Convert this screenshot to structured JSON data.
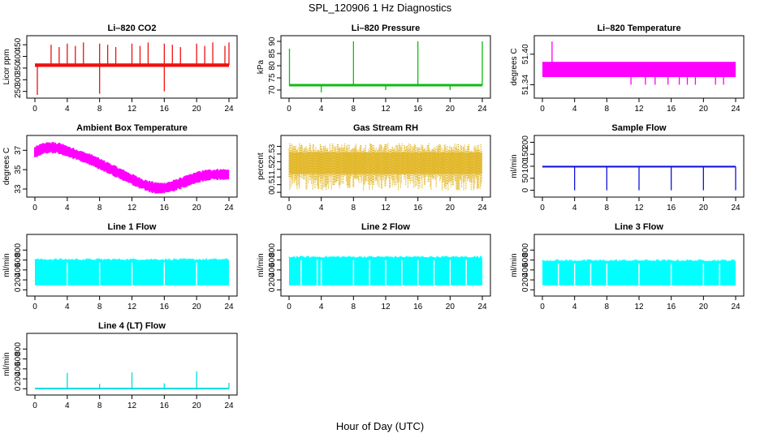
{
  "title": "SPL_120906  1 Hz Diagnostics",
  "xlabel": "Hour of Day (UTC)",
  "chart_data": [
    {
      "id": "co2",
      "type": "line",
      "title": "Li–820 CO2",
      "ylabel": "Licor ppm",
      "color": "#ee1111",
      "xlim": [
        0,
        24
      ],
      "xticks": [
        0,
        4,
        8,
        12,
        16,
        20,
        24
      ],
      "ylim": [
        235,
        475
      ],
      "yticks": [
        250,
        300,
        350,
        400,
        450
      ],
      "series": [
        {
          "band": [
            355,
            370
          ],
          "spikes": [
            [
              0.3,
              235
            ],
            [
              2,
              450
            ],
            [
              3,
              440
            ],
            [
              4,
              455
            ],
            [
              5,
              445
            ],
            [
              6,
              460
            ],
            [
              8,
              240
            ],
            [
              8,
              455
            ],
            [
              9,
              450
            ],
            [
              10,
              440
            ],
            [
              12,
              455
            ],
            [
              13,
              445
            ],
            [
              14,
              460
            ],
            [
              16,
              250
            ],
            [
              16,
              455
            ],
            [
              17,
              450
            ],
            [
              18,
              440
            ],
            [
              20,
              455
            ],
            [
              21,
              445
            ],
            [
              22,
              460
            ],
            [
              23.5,
              445
            ],
            [
              24,
              460
            ]
          ]
        }
      ]
    },
    {
      "id": "pressure",
      "type": "line",
      "title": "Li–820 Pressure",
      "ylabel": "kPa",
      "color": "#11bb11",
      "xlim": [
        0,
        24
      ],
      "xticks": [
        0,
        4,
        8,
        12,
        16,
        20,
        24
      ],
      "ylim": [
        68,
        91
      ],
      "yticks": [
        70,
        75,
        80,
        85,
        90
      ],
      "series": [
        {
          "band": [
            71.5,
            72.5
          ],
          "spikes": [
            [
              0.05,
              87
            ],
            [
              4,
              69
            ],
            [
              8,
              90
            ],
            [
              12,
              70
            ],
            [
              16,
              90
            ],
            [
              20,
              70
            ],
            [
              24,
              90
            ]
          ]
        }
      ]
    },
    {
      "id": "licor_temp",
      "type": "line",
      "title": "Li–820 Temperature",
      "ylabel": "degrees C",
      "color": "#ff00ff",
      "xlim": [
        0,
        24
      ],
      "xticks": [
        0,
        4,
        8,
        12,
        16,
        20,
        24
      ],
      "ylim": [
        51.32,
        51.43
      ],
      "yticks": [
        51.34,
        51.4
      ],
      "series": [
        {
          "band": [
            51.355,
            51.385
          ],
          "spikes": [
            [
              1.2,
              51.425
            ],
            [
              11,
              51.34
            ],
            [
              12.8,
              51.34
            ],
            [
              14,
              51.34
            ],
            [
              15.6,
              51.34
            ],
            [
              17,
              51.34
            ],
            [
              18,
              51.34
            ],
            [
              19,
              51.34
            ],
            [
              21.5,
              51.34
            ],
            [
              22.5,
              51.34
            ]
          ]
        }
      ]
    },
    {
      "id": "ambient_temp",
      "type": "line",
      "title": "Ambient Box Temperature",
      "ylabel": "degrees C",
      "color": "#ff00ff",
      "xlim": [
        0,
        24
      ],
      "xticks": [
        0,
        4,
        8,
        12,
        16,
        20,
        24
      ],
      "ylim": [
        32.5,
        38.2
      ],
      "yticks": [
        33,
        35,
        37
      ],
      "series": [
        {
          "x": [
            0,
            1,
            2,
            3,
            4,
            5,
            6,
            7,
            8,
            9,
            10,
            11,
            12,
            13,
            14,
            15,
            16,
            17,
            18,
            19,
            20,
            21,
            22,
            23,
            24
          ],
          "y": [
            36.8,
            37.2,
            37.3,
            37.2,
            36.9,
            36.6,
            36.3,
            36.0,
            35.6,
            35.2,
            34.8,
            34.4,
            34.0,
            33.6,
            33.3,
            33.1,
            33.1,
            33.3,
            33.6,
            33.9,
            34.2,
            34.4,
            34.5,
            34.5,
            34.5
          ],
          "halfwidth": 0.6
        }
      ]
    },
    {
      "id": "rh",
      "type": "line",
      "title": "Gas Stream RH",
      "ylabel": "percent",
      "color": "#ddaa00",
      "xlim": [
        0,
        24
      ],
      "xticks": [
        0,
        4,
        8,
        12,
        16,
        20,
        24
      ],
      "ylim": [
        -0.1,
        3.5
      ],
      "yticks": [
        0.0,
        0.5,
        1.0,
        1.5,
        2.0,
        2.5,
        3.0
      ],
      "series": [
        {
          "band": [
            1.2,
            2.6
          ],
          "outer": [
            0.1,
            3.2
          ]
        }
      ]
    },
    {
      "id": "sample_flow",
      "type": "line",
      "title": "Sample Flow",
      "ylabel": "ml/min",
      "color": "#1111dd",
      "xlim": [
        0,
        24
      ],
      "xticks": [
        0,
        4,
        8,
        12,
        16,
        20,
        24
      ],
      "ylim": [
        -15,
        215
      ],
      "yticks": [
        0,
        50,
        100,
        150,
        200
      ],
      "series": [
        {
          "band": [
            95,
            102
          ],
          "spikes": [
            [
              4,
              0
            ],
            [
              8,
              0
            ],
            [
              12,
              0
            ],
            [
              16,
              0
            ],
            [
              20,
              0
            ],
            [
              24,
              0
            ]
          ]
        }
      ]
    },
    {
      "id": "line1",
      "type": "area",
      "title": "Line 1 Flow",
      "ylabel": "ml/min",
      "color": "#00ffff",
      "xlim": [
        0,
        24
      ],
      "xticks": [
        0,
        4,
        8,
        12,
        16,
        20,
        24
      ],
      "ylim": [
        -60,
        1050
      ],
      "yticks": [
        0,
        200,
        400,
        600,
        800
      ],
      "series": [
        {
          "band": [
            90,
            600
          ],
          "gaps": [
            4,
            8,
            12,
            16,
            20
          ]
        }
      ]
    },
    {
      "id": "line2",
      "type": "area",
      "title": "Line 2 Flow",
      "ylabel": "ml/min",
      "color": "#00ffff",
      "xlim": [
        0,
        24
      ],
      "xticks": [
        0,
        4,
        8,
        12,
        16,
        20,
        24
      ],
      "ylim": [
        -60,
        1050
      ],
      "yticks": [
        0,
        200,
        400,
        600,
        800
      ],
      "series": [
        {
          "band": [
            90,
            650
          ],
          "gaps": [
            1.5,
            3.5,
            4,
            8,
            10,
            12,
            14,
            16,
            18,
            20,
            22
          ]
        }
      ]
    },
    {
      "id": "line3",
      "type": "area",
      "title": "Line 3 Flow",
      "ylabel": "ml/min",
      "color": "#00ffff",
      "xlim": [
        0,
        24
      ],
      "xticks": [
        0,
        4,
        8,
        12,
        16,
        20,
        24
      ],
      "ylim": [
        -60,
        1050
      ],
      "yticks": [
        0,
        200,
        400,
        600,
        800
      ],
      "series": [
        {
          "band": [
            90,
            580
          ],
          "gaps": [
            2,
            4,
            6,
            8,
            12,
            16,
            20,
            22
          ]
        }
      ]
    },
    {
      "id": "line4",
      "type": "line",
      "title": "Line 4 (LT) Flow",
      "ylabel": "ml/min",
      "color": "#00dddd",
      "xlim": [
        0,
        24
      ],
      "xticks": [
        0,
        4,
        8,
        12,
        16,
        20,
        24
      ],
      "ylim": [
        -60,
        1050
      ],
      "yticks": [
        0,
        200,
        400,
        600,
        800
      ],
      "series": [
        {
          "base": 5,
          "spikes": [
            [
              4,
              320
            ],
            [
              8,
              100
            ],
            [
              12,
              330
            ],
            [
              16,
              110
            ],
            [
              20,
              350
            ],
            [
              24,
              120
            ]
          ]
        }
      ]
    }
  ]
}
